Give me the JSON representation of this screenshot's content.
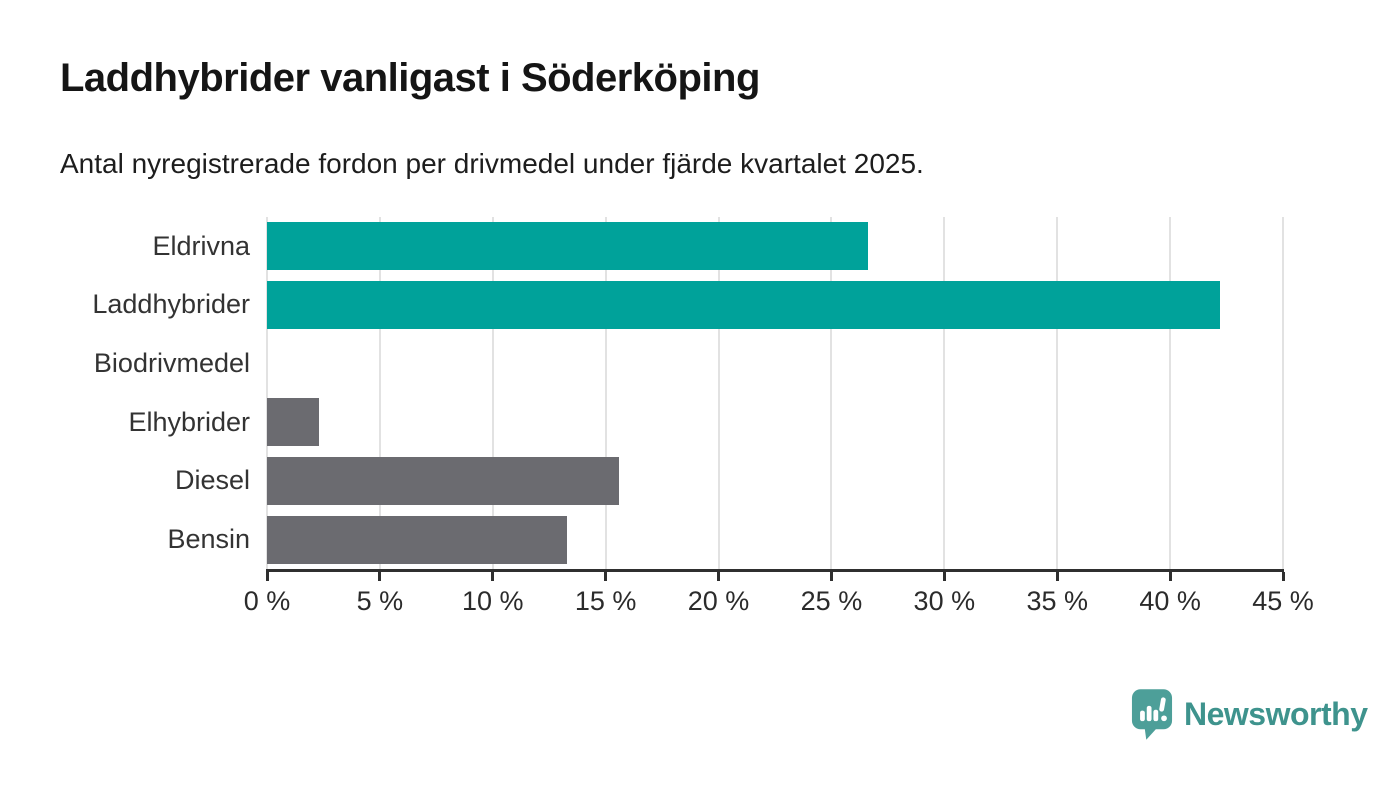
{
  "header": {
    "title": "Laddhybrider vanligast i Söderköping",
    "subtitle": "Antal nyregistrerade fordon per drivmedel under fjärde kvartalet 2025."
  },
  "chart_data": {
    "type": "bar",
    "orientation": "horizontal",
    "title": "Laddhybrider vanligast i Söderköping",
    "subtitle": "Antal nyregistrerade fordon per drivmedel under fjärde kvartalet 2025.",
    "categories": [
      "Eldrivna",
      "Laddhybrider",
      "Biodrivmedel",
      "Elhybrider",
      "Diesel",
      "Bensin"
    ],
    "values": [
      26.6,
      42.2,
      0,
      2.3,
      15.6,
      13.3
    ],
    "bar_colors": [
      "#00a29a",
      "#00a29a",
      "#6b6b70",
      "#6b6b70",
      "#6b6b70",
      "#6b6b70"
    ],
    "xlabel": "",
    "ylabel": "",
    "xlim": [
      0,
      45
    ],
    "tick_values": [
      0,
      5,
      10,
      15,
      20,
      25,
      30,
      35,
      40,
      45
    ],
    "xticks": [
      "0 %",
      "5 %",
      "10 %",
      "15 %",
      "20 %",
      "25 %",
      "30 %",
      "35 %",
      "40 %",
      "45 %"
    ],
    "grid": "vertical-only",
    "legend": "none"
  },
  "colors": {
    "highlight_teal": "#00a29a",
    "neutral_gray": "#6b6b70",
    "grid_gray": "#e2e2e2",
    "axis_dark": "#2f2f2f",
    "brand_teal": "#3e938d",
    "brand_icon_teal": "#4d9f99"
  },
  "footer": {
    "brand": "Newsworthy"
  }
}
